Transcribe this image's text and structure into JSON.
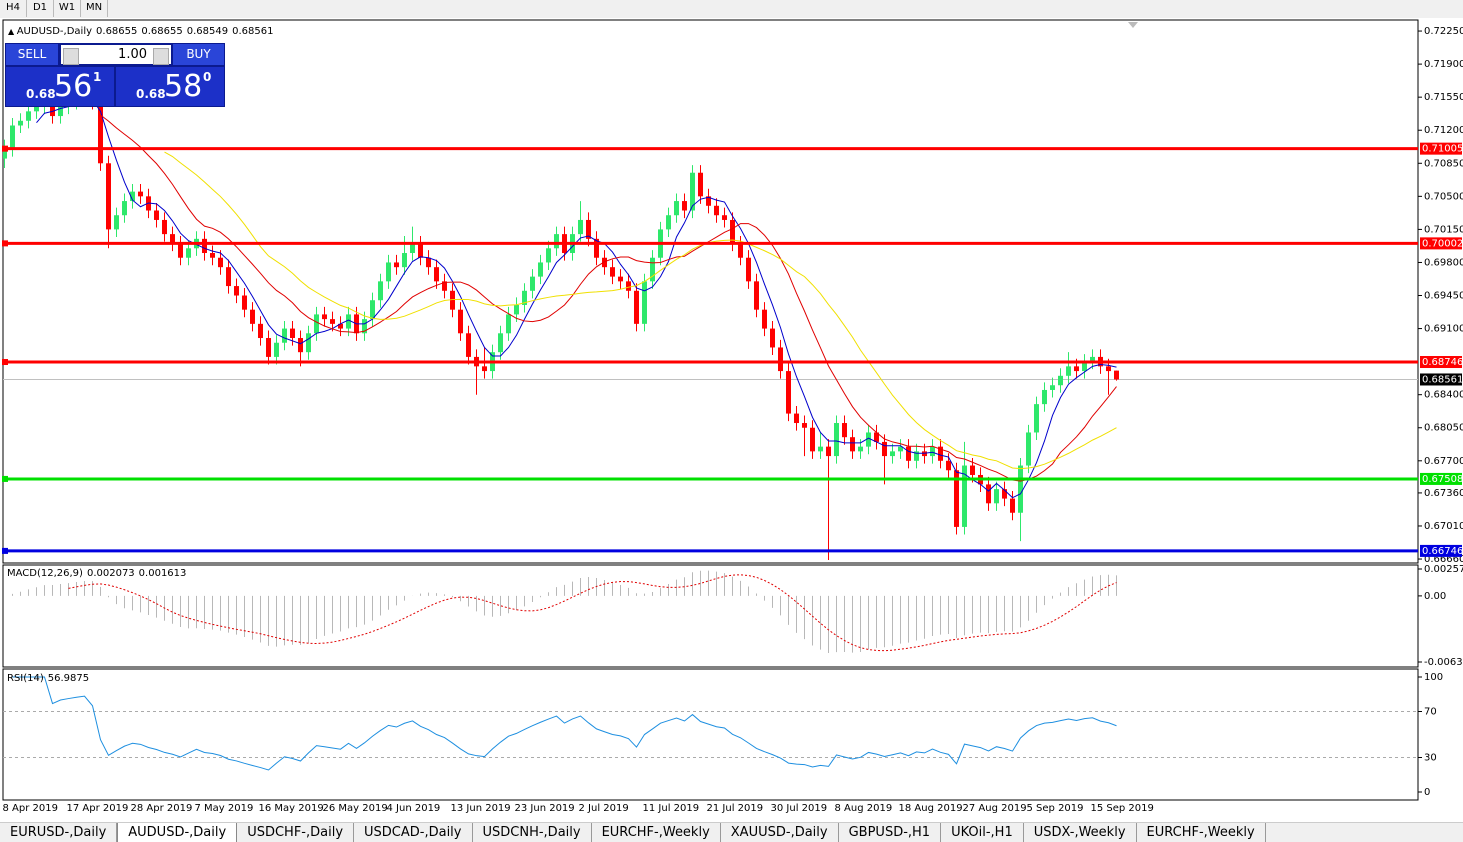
{
  "toolbar": [
    "H4",
    "D1",
    "W1",
    "MN"
  ],
  "trade_panel": {
    "sell": "SELL",
    "buy": "BUY",
    "volume": "1.00",
    "bid": {
      "prefix": "0.68",
      "big": "56",
      "small": "1"
    },
    "ask": {
      "prefix": "0.68",
      "big": "58",
      "small": "0"
    }
  },
  "tabs": [
    "EURUSD-,Daily",
    "AUDUSD-,Daily",
    "USDCHF-,Daily",
    "USDCAD-,Daily",
    "USDCNH-,Daily",
    "EURCHF-,Weekly",
    "XAUUSD-,Daily",
    "GBPUSD-,H1",
    "UKOil-,H1",
    "USDX-,Weekly",
    "EURCHF-,Weekly"
  ],
  "active_tab": 1,
  "chart_data": {
    "type": "candlestick",
    "title": "AUDUSD-,Daily",
    "header_values": [
      0.68655,
      0.68655,
      0.68549,
      0.68561
    ],
    "up_color": "#2ee86b",
    "down_color": "#ff0000",
    "ylim": [
      0.66618,
      0.72367
    ],
    "yticks": [
      {
        "value": 0.7225,
        "label": "0.72250"
      },
      {
        "value": 0.719,
        "label": "0.71900"
      },
      {
        "value": 0.7155,
        "label": "0.71550"
      },
      {
        "value": 0.712,
        "label": "0.71200"
      },
      {
        "value": 0.7085,
        "label": "0.70850"
      },
      {
        "value": 0.705,
        "label": "0.70500"
      },
      {
        "value": 0.7015,
        "label": "0.70150"
      },
      {
        "value": 0.698,
        "label": "0.69800"
      },
      {
        "value": 0.6945,
        "label": "0.69450"
      },
      {
        "value": 0.691,
        "label": "0.69100"
      },
      {
        "value": 0.684,
        "label": "0.68400"
      },
      {
        "value": 0.6805,
        "label": "0.68050"
      },
      {
        "value": 0.677,
        "label": "0.67700"
      },
      {
        "value": 0.6736,
        "label": "0.67360"
      },
      {
        "value": 0.6701,
        "label": "0.67010"
      },
      {
        "value": 0.6666,
        "label": "0.66660"
      }
    ],
    "levels": [
      {
        "value": 0.71005,
        "color": "#ff0000"
      },
      {
        "value": 0.70002,
        "color": "#ff0000"
      },
      {
        "value": 0.68746,
        "color": "#ff0000"
      },
      {
        "value": 0.67508,
        "color": "#00e000"
      },
      {
        "value": 0.66746,
        "color": "#0000e0"
      }
    ],
    "price_line": 0.68561,
    "x_labels": [
      {
        "index": 0,
        "label": "8 Apr 2019"
      },
      {
        "index": 8,
        "label": "17 Apr 2019"
      },
      {
        "index": 16,
        "label": "28 Apr 2019"
      },
      {
        "index": 24,
        "label": "7 May 2019"
      },
      {
        "index": 32,
        "label": "16 May 2019"
      },
      {
        "index": 40,
        "label": "26 May 2019"
      },
      {
        "index": 48,
        "label": "4 Jun 2019"
      },
      {
        "index": 56,
        "label": "13 Jun 2019"
      },
      {
        "index": 64,
        "label": "23 Jun 2019"
      },
      {
        "index": 72,
        "label": "2 Jul 2019"
      },
      {
        "index": 80,
        "label": "11 Jul 2019"
      },
      {
        "index": 88,
        "label": "21 Jul 2019"
      },
      {
        "index": 96,
        "label": "30 Jul 2019"
      },
      {
        "index": 104,
        "label": "8 Aug 2019"
      },
      {
        "index": 112,
        "label": "18 Aug 2019"
      },
      {
        "index": 120,
        "label": "27 Aug 2019"
      },
      {
        "index": 128,
        "label": "5 Sep 2019"
      },
      {
        "index": 136,
        "label": "15 Sep 2019"
      }
    ],
    "ohlc": [
      [
        0.709,
        0.711,
        0.708,
        0.71
      ],
      [
        0.71,
        0.7133,
        0.7092,
        0.7125
      ],
      [
        0.7125,
        0.7138,
        0.7117,
        0.713
      ],
      [
        0.713,
        0.7148,
        0.7122,
        0.714
      ],
      [
        0.714,
        0.7153,
        0.7132,
        0.7145
      ],
      [
        0.7145,
        0.7158,
        0.7137,
        0.715
      ],
      [
        0.715,
        0.7158,
        0.7127,
        0.7135
      ],
      [
        0.7135,
        0.7153,
        0.7127,
        0.7145
      ],
      [
        0.7145,
        0.7158,
        0.7137,
        0.715
      ],
      [
        0.715,
        0.7163,
        0.7142,
        0.7155
      ],
      [
        0.7155,
        0.7168,
        0.7147,
        0.716
      ],
      [
        0.716,
        0.7168,
        0.7142,
        0.715
      ],
      [
        0.715,
        0.7158,
        0.7077,
        0.7085
      ],
      [
        0.7085,
        0.7093,
        0.6995,
        0.7015
      ],
      [
        0.7015,
        0.7038,
        0.7007,
        0.703
      ],
      [
        0.703,
        0.7053,
        0.7022,
        0.7045
      ],
      [
        0.7045,
        0.7063,
        0.7037,
        0.7055
      ],
      [
        0.7055,
        0.7063,
        0.7042,
        0.705
      ],
      [
        0.705,
        0.7058,
        0.7027,
        0.7035
      ],
      [
        0.7035,
        0.7043,
        0.7017,
        0.7025
      ],
      [
        0.7025,
        0.7033,
        0.7002,
        0.701
      ],
      [
        0.701,
        0.7018,
        0.6992,
        0.7
      ],
      [
        0.7,
        0.7008,
        0.6977,
        0.6985
      ],
      [
        0.6985,
        0.7003,
        0.6977,
        0.6995
      ],
      [
        0.6995,
        0.7013,
        0.6987,
        0.7005
      ],
      [
        0.7005,
        0.7013,
        0.6982,
        0.699
      ],
      [
        0.699,
        0.6998,
        0.6977,
        0.6985
      ],
      [
        0.6985,
        0.6993,
        0.6967,
        0.6975
      ],
      [
        0.6975,
        0.6983,
        0.6947,
        0.6955
      ],
      [
        0.6955,
        0.6963,
        0.6937,
        0.6945
      ],
      [
        0.6945,
        0.6953,
        0.6922,
        0.693
      ],
      [
        0.693,
        0.6938,
        0.6907,
        0.6915
      ],
      [
        0.6915,
        0.6923,
        0.6892,
        0.69
      ],
      [
        0.69,
        0.6908,
        0.6872,
        0.688
      ],
      [
        0.688,
        0.6903,
        0.6872,
        0.6895
      ],
      [
        0.6895,
        0.6918,
        0.6887,
        0.691
      ],
      [
        0.691,
        0.6918,
        0.6892,
        0.69
      ],
      [
        0.69,
        0.6908,
        0.687,
        0.6885
      ],
      [
        0.6885,
        0.6913,
        0.6877,
        0.6905
      ],
      [
        0.6905,
        0.6933,
        0.6897,
        0.6925
      ],
      [
        0.6925,
        0.6933,
        0.6912,
        0.692
      ],
      [
        0.692,
        0.6928,
        0.6907,
        0.6915
      ],
      [
        0.6915,
        0.6923,
        0.6902,
        0.691
      ],
      [
        0.691,
        0.6933,
        0.6902,
        0.6925
      ],
      [
        0.6925,
        0.6933,
        0.6897,
        0.6905
      ],
      [
        0.6905,
        0.6928,
        0.6897,
        0.692
      ],
      [
        0.692,
        0.6948,
        0.6912,
        0.694
      ],
      [
        0.694,
        0.6968,
        0.6932,
        0.696
      ],
      [
        0.696,
        0.6988,
        0.6952,
        0.698
      ],
      [
        0.698,
        0.6988,
        0.6967,
        0.6975
      ],
      [
        0.6975,
        0.7008,
        0.6967,
        0.699
      ],
      [
        0.699,
        0.7018,
        0.6982,
        0.7
      ],
      [
        0.7,
        0.7008,
        0.6977,
        0.6985
      ],
      [
        0.6985,
        0.6993,
        0.6967,
        0.6975
      ],
      [
        0.6975,
        0.6983,
        0.6952,
        0.696
      ],
      [
        0.696,
        0.6968,
        0.6942,
        0.695
      ],
      [
        0.695,
        0.6958,
        0.6922,
        0.693
      ],
      [
        0.693,
        0.6938,
        0.6897,
        0.6905
      ],
      [
        0.6905,
        0.6913,
        0.6872,
        0.688
      ],
      [
        0.688,
        0.6888,
        0.684,
        0.687
      ],
      [
        0.687,
        0.689,
        0.6857,
        0.6865
      ],
      [
        0.6865,
        0.6893,
        0.6857,
        0.6885
      ],
      [
        0.6885,
        0.6913,
        0.6877,
        0.6905
      ],
      [
        0.6905,
        0.6933,
        0.6897,
        0.6925
      ],
      [
        0.6925,
        0.6943,
        0.6917,
        0.6935
      ],
      [
        0.6935,
        0.6958,
        0.6927,
        0.695
      ],
      [
        0.695,
        0.6973,
        0.6942,
        0.6965
      ],
      [
        0.6965,
        0.6988,
        0.6957,
        0.698
      ],
      [
        0.698,
        0.7003,
        0.6972,
        0.6995
      ],
      [
        0.6995,
        0.7018,
        0.6987,
        0.701
      ],
      [
        0.701,
        0.7018,
        0.6982,
        0.699
      ],
      [
        0.699,
        0.7018,
        0.6982,
        0.701
      ],
      [
        0.701,
        0.7045,
        0.7002,
        0.7025
      ],
      [
        0.7025,
        0.7033,
        0.6997,
        0.7005
      ],
      [
        0.7005,
        0.7013,
        0.6977,
        0.6985
      ],
      [
        0.6985,
        0.6993,
        0.6967,
        0.6975
      ],
      [
        0.6975,
        0.6983,
        0.6957,
        0.6965
      ],
      [
        0.6965,
        0.6973,
        0.6952,
        0.696
      ],
      [
        0.696,
        0.6968,
        0.6942,
        0.695
      ],
      [
        0.695,
        0.6958,
        0.6907,
        0.6915
      ],
      [
        0.6915,
        0.6968,
        0.6907,
        0.696
      ],
      [
        0.696,
        0.6993,
        0.6952,
        0.6985
      ],
      [
        0.6985,
        0.7023,
        0.6977,
        0.7015
      ],
      [
        0.7015,
        0.7038,
        0.7007,
        0.703
      ],
      [
        0.703,
        0.7053,
        0.7022,
        0.7045
      ],
      [
        0.7045,
        0.7053,
        0.7027,
        0.7035
      ],
      [
        0.7035,
        0.7083,
        0.7027,
        0.7075
      ],
      [
        0.7075,
        0.7083,
        0.7042,
        0.705
      ],
      [
        0.705,
        0.7058,
        0.7032,
        0.704
      ],
      [
        0.704,
        0.7048,
        0.7022,
        0.703
      ],
      [
        0.703,
        0.7038,
        0.7017,
        0.7025
      ],
      [
        0.7025,
        0.7033,
        0.6992,
        0.7
      ],
      [
        0.7,
        0.7008,
        0.6977,
        0.6985
      ],
      [
        0.6985,
        0.6993,
        0.6952,
        0.696
      ],
      [
        0.696,
        0.6968,
        0.6922,
        0.693
      ],
      [
        0.693,
        0.6938,
        0.6902,
        0.691
      ],
      [
        0.691,
        0.6918,
        0.6882,
        0.689
      ],
      [
        0.689,
        0.6898,
        0.6857,
        0.6865
      ],
      [
        0.6865,
        0.6873,
        0.6812,
        0.682
      ],
      [
        0.682,
        0.6828,
        0.6802,
        0.681
      ],
      [
        0.681,
        0.6818,
        0.6775,
        0.6805
      ],
      [
        0.6805,
        0.6813,
        0.6772,
        0.678
      ],
      [
        0.678,
        0.68,
        0.6772,
        0.6785
      ],
      [
        0.6785,
        0.6793,
        0.6665,
        0.6775
      ],
      [
        0.6775,
        0.6818,
        0.6767,
        0.681
      ],
      [
        0.681,
        0.6818,
        0.6787,
        0.6795
      ],
      [
        0.6795,
        0.6803,
        0.6772,
        0.678
      ],
      [
        0.678,
        0.6793,
        0.6772,
        0.6785
      ],
      [
        0.6785,
        0.6808,
        0.6777,
        0.68
      ],
      [
        0.68,
        0.6808,
        0.6782,
        0.679
      ],
      [
        0.679,
        0.6798,
        0.6745,
        0.6775
      ],
      [
        0.6775,
        0.6788,
        0.6767,
        0.678
      ],
      [
        0.678,
        0.6793,
        0.6772,
        0.6785
      ],
      [
        0.6785,
        0.6793,
        0.6762,
        0.677
      ],
      [
        0.677,
        0.6788,
        0.6762,
        0.678
      ],
      [
        0.678,
        0.6788,
        0.6767,
        0.6775
      ],
      [
        0.6775,
        0.6793,
        0.6767,
        0.6785
      ],
      [
        0.6785,
        0.6793,
        0.6762,
        0.677
      ],
      [
        0.677,
        0.6778,
        0.6752,
        0.676
      ],
      [
        0.676,
        0.6768,
        0.6692,
        0.67
      ],
      [
        0.67,
        0.679,
        0.6692,
        0.6765
      ],
      [
        0.6765,
        0.6773,
        0.6747,
        0.6755
      ],
      [
        0.6755,
        0.6763,
        0.6737,
        0.6745
      ],
      [
        0.6745,
        0.6753,
        0.6717,
        0.6725
      ],
      [
        0.6725,
        0.6748,
        0.6717,
        0.674
      ],
      [
        0.674,
        0.6748,
        0.6722,
        0.673
      ],
      [
        0.673,
        0.6738,
        0.6707,
        0.6715
      ],
      [
        0.6715,
        0.6773,
        0.6685,
        0.6765
      ],
      [
        0.6765,
        0.6808,
        0.6757,
        0.68
      ],
      [
        0.68,
        0.6838,
        0.6792,
        0.683
      ],
      [
        0.683,
        0.6853,
        0.6822,
        0.6845
      ],
      [
        0.6845,
        0.6858,
        0.6837,
        0.685
      ],
      [
        0.685,
        0.6868,
        0.6842,
        0.686
      ],
      [
        0.686,
        0.6885,
        0.6852,
        0.687
      ],
      [
        0.687,
        0.6878,
        0.6857,
        0.6865
      ],
      [
        0.6865,
        0.6883,
        0.6857,
        0.6875
      ],
      [
        0.6875,
        0.6888,
        0.6867,
        0.688
      ],
      [
        0.688,
        0.6888,
        0.6862,
        0.687
      ],
      [
        0.687,
        0.6878,
        0.684,
        0.6865
      ],
      [
        0.68655,
        0.68655,
        0.68549,
        0.68561
      ]
    ],
    "macd": {
      "label": "MACD(12,26,9)",
      "values": [
        0.002073,
        0.001613
      ],
      "ylim": [
        -0.006326,
        0.002574
      ],
      "yticks": [
        0.002574,
        {
          "value": 0,
          "label": "0.00"
        },
        -0.006326
      ]
    },
    "rsi": {
      "label": "RSI(14)",
      "value": 56.9875,
      "ylim": [
        0,
        100
      ],
      "yticks": [
        100,
        70,
        30,
        0
      ]
    }
  }
}
